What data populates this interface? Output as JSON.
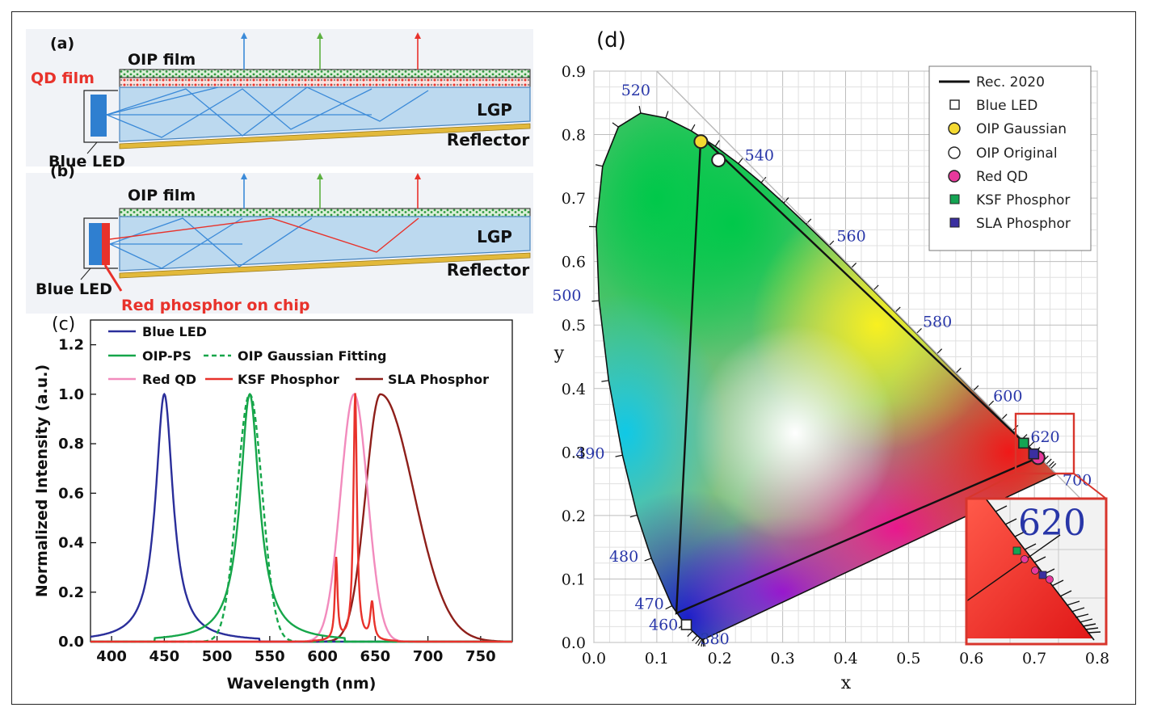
{
  "panel_a": {
    "label": "(a)",
    "oip_film": "OIP film",
    "qd_film": "QD film",
    "lgp": "LGP",
    "reflector": "Reflector",
    "blue_led": "Blue LED"
  },
  "panel_b": {
    "label": "(b)",
    "oip_film": "OIP film",
    "lgp": "LGP",
    "reflector": "Reflector",
    "blue_led": "Blue LED",
    "red_phosphor": "Red phosphor on chip"
  },
  "colors": {
    "blue_led": "#2a2e9a",
    "oip": "#16a64a",
    "red_qd": "#f28bbd",
    "ksf": "#e8322b",
    "sla": "#8e1f1a",
    "lgp_fill": "#bcd9ef",
    "reflector": "#e2b93b",
    "qd_red": "#e8322b",
    "inset_border": "#d8352c",
    "wavelength_label": "#2836a8"
  },
  "chart_data": [
    {
      "type": "line",
      "panel_label": "(c)",
      "xlabel": "Wavelength (nm)",
      "ylabel": "Normalized Intensity (a.u.)",
      "xlim": [
        380,
        780
      ],
      "ylim": [
        0,
        1.3
      ],
      "x_ticks": [
        400,
        450,
        500,
        550,
        600,
        650,
        700,
        750
      ],
      "y_ticks": [
        0.0,
        0.2,
        0.4,
        0.6,
        0.8,
        1.0,
        1.2
      ],
      "legend": {
        "placement": "top-left",
        "entries": [
          "Blue LED",
          "OIP-PS",
          "OIP Gaussian Fitting",
          "Red QD",
          "KSF Phosphor",
          "SLA Phosphor"
        ]
      },
      "series": [
        {
          "name": "Blue LED",
          "shape": "lorentzian",
          "peak_nm": 450,
          "fwhm_nm": 20,
          "peak_value": 1.0
        },
        {
          "name": "OIP-PS",
          "shape": "lorentzian",
          "peak_nm": 531,
          "fwhm_nm": 22,
          "peak_value": 1.0
        },
        {
          "name": "OIP Gaussian Fitting",
          "shape": "gaussian",
          "peak_nm": 531,
          "fwhm_nm": 28,
          "peak_value": 1.0
        },
        {
          "name": "Red QD",
          "shape": "gaussian",
          "peak_nm": 630,
          "fwhm_nm": 30,
          "peak_value": 1.0
        },
        {
          "name": "KSF Phosphor",
          "shape": "lines",
          "lines": [
            {
              "peak_nm": 631,
              "fwhm_nm": 4,
              "peak_value": 1.0
            },
            {
              "peak_nm": 613,
              "fwhm_nm": 3,
              "peak_value": 0.33
            },
            {
              "peak_nm": 647,
              "fwhm_nm": 4,
              "peak_value": 0.15
            }
          ]
        },
        {
          "name": "SLA Phosphor",
          "shape": "asymmetric",
          "peak_nm": 655,
          "fwhm_nm": 55,
          "peak_value": 1.0
        }
      ]
    },
    {
      "type": "scatter",
      "panel_label": "(d)",
      "xlabel": "x",
      "ylabel": "y",
      "xlim": [
        0.0,
        0.8
      ],
      "ylim": [
        0.0,
        0.9
      ],
      "x_ticks": [
        0.0,
        0.1,
        0.2,
        0.3,
        0.4,
        0.5,
        0.6,
        0.7,
        0.8
      ],
      "y_ticks": [
        0.0,
        0.1,
        0.2,
        0.3,
        0.4,
        0.5,
        0.6,
        0.7,
        0.8,
        0.9
      ],
      "grid": true,
      "legend": {
        "placement": "top-right",
        "entries": [
          "Rec. 2020",
          "Blue LED",
          "OIP Gaussian",
          "OIP Original",
          "Red QD",
          "KSF Phosphor",
          "SLA Phosphor"
        ]
      },
      "locus": [
        [
          0.1741,
          0.005
        ],
        [
          0.1738,
          0.0049
        ],
        [
          0.1733,
          0.0048
        ],
        [
          0.1726,
          0.0048
        ],
        [
          0.1714,
          0.0051
        ],
        [
          0.1689,
          0.0069
        ],
        [
          0.164,
          0.011
        ],
        [
          0.1566,
          0.0177
        ],
        [
          0.144,
          0.0297
        ],
        [
          0.1241,
          0.0578
        ],
        [
          0.0913,
          0.1327
        ],
        [
          0.0687,
          0.2007
        ],
        [
          0.0454,
          0.295
        ],
        [
          0.0235,
          0.4127
        ],
        [
          0.0082,
          0.5384
        ],
        [
          0.0039,
          0.6548
        ],
        [
          0.0139,
          0.7502
        ],
        [
          0.0389,
          0.812
        ],
        [
          0.0743,
          0.8338
        ],
        [
          0.1142,
          0.8262
        ],
        [
          0.1547,
          0.8059
        ],
        [
          0.1929,
          0.7816
        ],
        [
          0.2296,
          0.7543
        ],
        [
          0.2658,
          0.7243
        ],
        [
          0.3016,
          0.6923
        ],
        [
          0.3373,
          0.6589
        ],
        [
          0.3731,
          0.6245
        ],
        [
          0.4087,
          0.5896
        ],
        [
          0.4441,
          0.5547
        ],
        [
          0.4788,
          0.5202
        ],
        [
          0.5125,
          0.4866
        ],
        [
          0.5448,
          0.4544
        ],
        [
          0.5752,
          0.4242
        ],
        [
          0.6029,
          0.3965
        ],
        [
          0.627,
          0.3725
        ],
        [
          0.6482,
          0.3514
        ],
        [
          0.6658,
          0.334
        ],
        [
          0.6801,
          0.3197
        ],
        [
          0.6915,
          0.3083
        ],
        [
          0.7006,
          0.2993
        ],
        [
          0.7079,
          0.292
        ],
        [
          0.714,
          0.2859
        ],
        [
          0.719,
          0.2809
        ],
        [
          0.723,
          0.277
        ],
        [
          0.726,
          0.274
        ],
        [
          0.7347,
          0.2653
        ]
      ],
      "wavelength_labels": [
        {
          "text": "380",
          "x": 0.1741,
          "y": 0.005
        },
        {
          "text": "460",
          "x": 0.144,
          "y": 0.0297
        },
        {
          "text": "470",
          "x": 0.1241,
          "y": 0.0578
        },
        {
          "text": "480",
          "x": 0.0913,
          "y": 0.1327
        },
        {
          "text": "490",
          "x": 0.0454,
          "y": 0.295
        },
        {
          "text": "500",
          "x": 0.0082,
          "y": 0.5384
        },
        {
          "text": "520",
          "x": 0.0743,
          "y": 0.8338
        },
        {
          "text": "540",
          "x": 0.2296,
          "y": 0.7543
        },
        {
          "text": "560",
          "x": 0.3731,
          "y": 0.6245
        },
        {
          "text": "580",
          "x": 0.5125,
          "y": 0.4866
        },
        {
          "text": "600",
          "x": 0.627,
          "y": 0.3725
        },
        {
          "text": "620",
          "x": 0.6915,
          "y": 0.3083
        },
        {
          "text": "700",
          "x": 0.7347,
          "y": 0.2653
        }
      ],
      "rec2020": [
        [
          0.708,
          0.292
        ],
        [
          0.17,
          0.797
        ],
        [
          0.131,
          0.046
        ]
      ],
      "points": [
        {
          "name": "Blue LED",
          "marker": "square",
          "fill": "#ffffff",
          "x": 0.147,
          "y": 0.028
        },
        {
          "name": "OIP Gaussian",
          "marker": "circle",
          "fill": "#f4d931",
          "x": 0.17,
          "y": 0.789
        },
        {
          "name": "OIP Original",
          "marker": "circle",
          "fill": "#ffffff",
          "x": 0.198,
          "y": 0.76
        },
        {
          "name": "Red QD",
          "marker": "circle",
          "fill": "#e8399c",
          "x": 0.706,
          "y": 0.291
        },
        {
          "name": "KSF Phosphor",
          "marker": "square",
          "fill": "#14a453",
          "x": 0.683,
          "y": 0.314
        },
        {
          "name": "SLA Phosphor",
          "marker": "square",
          "fill": "#3a2fa0",
          "x": 0.699,
          "y": 0.297
        }
      ],
      "inset_label": "620"
    }
  ]
}
